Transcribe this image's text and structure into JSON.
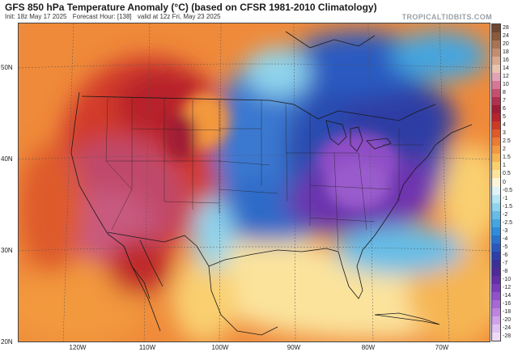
{
  "header": {
    "title": "GFS 850 hPa Temperature Anomaly (°C) (based on CFSR 1981-2010 Climatology)",
    "init": "Init: 18z May 17 2025",
    "forecast_hour": "Forecast Hour: [138]",
    "valid": "valid at 12z Fri, May 23 2025",
    "brand": "TROPICALTIDBITS.COM"
  },
  "map": {
    "lat_labels": [
      "50N",
      "40N",
      "30N",
      "20N"
    ],
    "lon_labels": [
      "120W",
      "110W",
      "100W",
      "90W",
      "80W",
      "70W"
    ]
  },
  "colorbar": {
    "labels": [
      "28",
      "24",
      "20",
      "18",
      "16",
      "14",
      "12",
      "10",
      "8",
      "7",
      "6",
      "5",
      "4",
      "3",
      "2.5",
      "2",
      "1.5",
      "1",
      "0.5",
      "0",
      "-0.5",
      "-1",
      "-1.5",
      "-2",
      "-2.5",
      "-3",
      "-4",
      "-5",
      "-6",
      "-7",
      "-8",
      "-10",
      "-12",
      "-14",
      "-16",
      "-18",
      "-20",
      "-24",
      "-28"
    ],
    "colors": [
      "#6e4630",
      "#8a5a3c",
      "#a87454",
      "#c28d6e",
      "#d8a98e",
      "#e8c4b0",
      "#e4a3b4",
      "#d67895",
      "#c5506e",
      "#b03050",
      "#a01c36",
      "#b4242a",
      "#cc3a26",
      "#de5a2a",
      "#ea7a34",
      "#f2983e",
      "#f6b552",
      "#f9cf70",
      "#fbe39c",
      "#fdf4d8",
      "#e0f3f8",
      "#b7e5f2",
      "#8fd4ec",
      "#66bde6",
      "#45a5df",
      "#2e8dd8",
      "#2a72cc",
      "#2a58bb",
      "#2e40a6",
      "#3a3198",
      "#4e2a94",
      "#642ea4",
      "#7a3cb8",
      "#9152c8",
      "#a868d4",
      "#bd84de",
      "#d0a2e8",
      "#e0c0f0",
      "#eedaf6"
    ]
  }
}
